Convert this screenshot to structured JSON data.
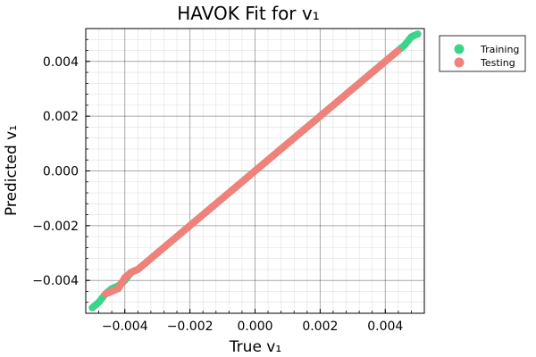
{
  "chart_data": {
    "type": "scatter",
    "title": "HAVOK Fit for v₁",
    "xlabel": "True v₁",
    "ylabel": "Predicted v₁",
    "xlim": [
      -0.0052,
      0.0052
    ],
    "ylim": [
      -0.0052,
      0.0052
    ],
    "xticks": [
      -0.004,
      -0.002,
      0.0,
      0.002,
      0.004
    ],
    "xtick_labels": [
      "−0.004",
      "−0.002",
      "0.000",
      "0.002",
      "0.004"
    ],
    "yticks": [
      -0.004,
      -0.002,
      0.0,
      0.002,
      0.004
    ],
    "ytick_labels": [
      "−0.004",
      "−0.002",
      "0.000",
      "0.002",
      "0.004"
    ],
    "grid": true,
    "minor_grid": true,
    "legend_position": "top-right outside",
    "series": [
      {
        "name": "Training",
        "color": "#3ad48a",
        "points": [
          [
            -0.005,
            -0.005
          ],
          [
            -0.0048,
            -0.0048
          ],
          [
            -0.0046,
            -0.0045
          ],
          [
            -0.0044,
            -0.0043
          ],
          [
            -0.0042,
            -0.0042
          ],
          [
            -0.004,
            -0.004
          ],
          [
            -0.0038,
            -0.0037
          ],
          [
            -0.0036,
            -0.0036
          ],
          [
            -0.0034,
            -0.0034
          ],
          [
            -0.0032,
            -0.0032
          ],
          [
            -0.003,
            -0.003
          ],
          [
            -0.0028,
            -0.0028
          ],
          [
            -0.0026,
            -0.0026
          ],
          [
            -0.0024,
            -0.0024
          ],
          [
            -0.0022,
            -0.0022
          ],
          [
            -0.002,
            -0.002
          ],
          [
            -0.0018,
            -0.0018
          ],
          [
            -0.0016,
            -0.0016
          ],
          [
            -0.0014,
            -0.0014
          ],
          [
            -0.0012,
            -0.0012
          ],
          [
            -0.001,
            -0.001
          ],
          [
            -0.0008,
            -0.0008
          ],
          [
            -0.0006,
            -0.0006
          ],
          [
            -0.0004,
            -0.0004
          ],
          [
            -0.0002,
            -0.0002
          ],
          [
            0.0,
            0.0
          ],
          [
            0.0002,
            0.0002
          ],
          [
            0.0004,
            0.0004
          ],
          [
            0.0006,
            0.0006
          ],
          [
            0.0008,
            0.0008
          ],
          [
            0.001,
            0.001
          ],
          [
            0.0012,
            0.0012
          ],
          [
            0.0014,
            0.0014
          ],
          [
            0.0016,
            0.0016
          ],
          [
            0.0018,
            0.0018
          ],
          [
            0.002,
            0.002
          ],
          [
            0.0022,
            0.0022
          ],
          [
            0.0024,
            0.0024
          ],
          [
            0.0026,
            0.0026
          ],
          [
            0.0028,
            0.0028
          ],
          [
            0.003,
            0.003
          ],
          [
            0.0032,
            0.0032
          ],
          [
            0.0034,
            0.0034
          ],
          [
            0.0036,
            0.0036
          ],
          [
            0.0038,
            0.0038
          ],
          [
            0.004,
            0.004
          ],
          [
            0.0042,
            0.0042
          ],
          [
            0.0044,
            0.0044
          ],
          [
            0.0046,
            0.0046
          ],
          [
            0.0048,
            0.0049
          ],
          [
            0.005,
            0.005
          ]
        ]
      },
      {
        "name": "Testing",
        "color": "#f0817b",
        "points": [
          [
            -0.0046,
            -0.0045
          ],
          [
            -0.0044,
            -0.0044
          ],
          [
            -0.0042,
            -0.0043
          ],
          [
            -0.0041,
            -0.0041
          ],
          [
            -0.004,
            -0.0039
          ],
          [
            -0.0039,
            -0.0038
          ],
          [
            -0.0038,
            -0.0037
          ],
          [
            -0.0036,
            -0.0036
          ],
          [
            -0.0034,
            -0.0034
          ],
          [
            -0.0032,
            -0.0032
          ],
          [
            -0.003,
            -0.003
          ],
          [
            -0.0028,
            -0.0028
          ],
          [
            -0.0026,
            -0.0026
          ],
          [
            -0.0024,
            -0.0024
          ],
          [
            -0.0022,
            -0.0022
          ],
          [
            -0.002,
            -0.002
          ],
          [
            -0.0018,
            -0.0018
          ],
          [
            -0.0016,
            -0.0016
          ],
          [
            -0.0014,
            -0.0014
          ],
          [
            -0.0012,
            -0.0012
          ],
          [
            -0.001,
            -0.001
          ],
          [
            -0.0008,
            -0.0008
          ],
          [
            -0.0006,
            -0.0006
          ],
          [
            -0.0004,
            -0.0004
          ],
          [
            -0.0002,
            -0.0002
          ],
          [
            0.0,
            0.0
          ],
          [
            0.0002,
            0.0002
          ],
          [
            0.0004,
            0.0004
          ],
          [
            0.0006,
            0.0006
          ],
          [
            0.0008,
            0.0008
          ],
          [
            0.001,
            0.001
          ],
          [
            0.0012,
            0.0012
          ],
          [
            0.0014,
            0.0014
          ],
          [
            0.0016,
            0.0016
          ],
          [
            0.0018,
            0.0018
          ],
          [
            0.002,
            0.002
          ],
          [
            0.0022,
            0.0022
          ],
          [
            0.0024,
            0.0024
          ],
          [
            0.0026,
            0.0026
          ],
          [
            0.0028,
            0.0028
          ],
          [
            0.003,
            0.003
          ],
          [
            0.0032,
            0.0032
          ],
          [
            0.0034,
            0.0034
          ],
          [
            0.0036,
            0.0036
          ],
          [
            0.0038,
            0.0038
          ],
          [
            0.004,
            0.004
          ],
          [
            0.0042,
            0.0042
          ],
          [
            0.0044,
            0.0044
          ]
        ]
      }
    ]
  }
}
